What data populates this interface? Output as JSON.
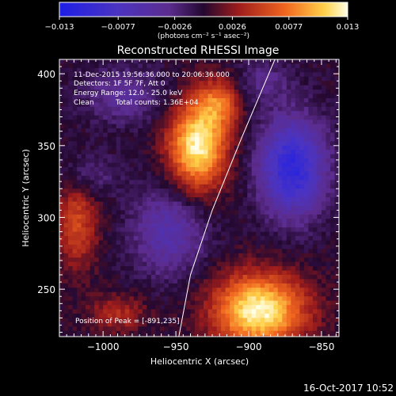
{
  "chart_data": {
    "type": "heatmap",
    "title": "Reconstructed RHESSI Image",
    "xlabel": "Heliocentric X (arcsec)",
    "ylabel": "Heliocentric Y (arcsec)",
    "xlim": [
      -1030,
      -838
    ],
    "ylim": [
      217,
      410
    ],
    "x_ticks": [
      -1000,
      -950,
      -900,
      -850
    ],
    "x_tick_labels": [
      "−1000",
      "−950",
      "−900",
      "−850"
    ],
    "y_ticks": [
      250,
      300,
      350,
      400
    ],
    "y_tick_labels": [
      "250",
      "300",
      "350",
      "400"
    ],
    "colorbar": {
      "min": -0.013,
      "max": 0.013,
      "ticks": [
        -0.013,
        -0.0077,
        -0.0026,
        0.0026,
        0.0077,
        0.013
      ],
      "tick_labels": [
        "−0.013",
        "−0.0077",
        "−0.0026",
        "0.0026",
        "0.0077",
        "0.013"
      ],
      "unit_label": "(photons cm⁻² s⁻¹ asec⁻²)"
    },
    "sources": [
      {
        "x": -935,
        "y": 350,
        "sx": 14,
        "sy": 22,
        "amp": 0.0125
      },
      {
        "x": -920,
        "y": 380,
        "sx": 10,
        "sy": 12,
        "amp": 0.006
      },
      {
        "x": -893,
        "y": 235,
        "sx": 22,
        "sy": 18,
        "amp": 0.0128
      },
      {
        "x": -1018,
        "y": 295,
        "sx": 10,
        "sy": 22,
        "amp": 0.0055
      },
      {
        "x": -990,
        "y": 233,
        "sx": 14,
        "sy": 9,
        "amp": 0.004
      },
      {
        "x": -955,
        "y": 290,
        "sx": 18,
        "sy": 22,
        "amp": -0.0055
      },
      {
        "x": -870,
        "y": 335,
        "sx": 16,
        "sy": 24,
        "amp": -0.011
      },
      {
        "x": -985,
        "y": 385,
        "sx": 20,
        "sy": 14,
        "amp": -0.004
      },
      {
        "x": -890,
        "y": 395,
        "sx": 14,
        "sy": 10,
        "amp": -0.003
      },
      {
        "x": -1010,
        "y": 330,
        "sx": 14,
        "sy": 10,
        "amp": -0.003
      }
    ],
    "limb_line": {
      "x": [
        -948,
        -940,
        -925,
        -905,
        -882
      ],
      "y": [
        217,
        260,
        305,
        355,
        410
      ]
    },
    "peak": {
      "x": -891,
      "y": 235
    },
    "colormap_stops": [
      {
        "v": 0.0,
        "color": "#1e1ee6"
      },
      {
        "v": 0.2,
        "color": "#4b34c2"
      },
      {
        "v": 0.38,
        "color": "#5c2c8e"
      },
      {
        "v": 0.5,
        "color": "#230830"
      },
      {
        "v": 0.62,
        "color": "#9c1c1c"
      },
      {
        "v": 0.78,
        "color": "#f0641e"
      },
      {
        "v": 0.92,
        "color": "#ffd24a"
      },
      {
        "v": 1.0,
        "color": "#ffffe6"
      }
    ]
  },
  "annotations": {
    "line1": "11-Dec-2015 19:56:36.000 to 20:06:36.000",
    "line2": "Detectors: 1F 5F 7F, Att 0",
    "line3": "Energy Range: 12.0 - 25.0 keV",
    "line4_a": "Clean",
    "line4_b": "Total counts: 1.36E+04",
    "peak_label": "Position of Peak = [-891,235]"
  },
  "footer": {
    "timestamp": "16-Oct-2017 10:52"
  }
}
